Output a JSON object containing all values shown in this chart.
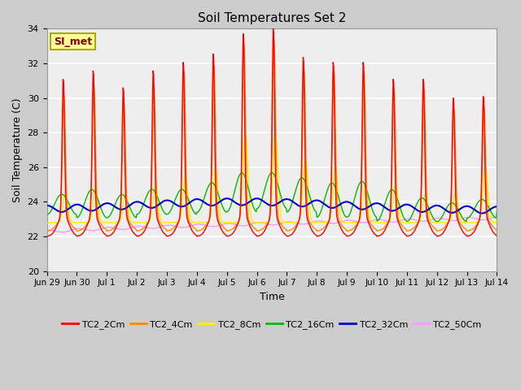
{
  "title": "Soil Temperatures Set 2",
  "xlabel": "Time",
  "ylabel": "Soil Temperature (C)",
  "ylim": [
    20,
    34
  ],
  "yticks": [
    20,
    22,
    24,
    26,
    28,
    30,
    32,
    34
  ],
  "annotation": "SI_met",
  "series_colors": {
    "TC2_2Cm": "#ff0000",
    "TC2_4Cm": "#ff8800",
    "TC2_8Cm": "#ffee00",
    "TC2_16Cm": "#00bb00",
    "TC2_32Cm": "#0000cc",
    "TC2_50Cm": "#ff99ff"
  },
  "x_tick_labels": [
    "Jun 29",
    "Jun 30",
    "Jul 1",
    "Jul 2",
    "Jul 3",
    "Jul 4",
    "Jul 5",
    "Jul 6",
    "Jul 7",
    "Jul 8",
    "Jul 9",
    "Jul 10",
    "Jul 11",
    "Jul 12",
    "Jul 13",
    "Jul 14"
  ]
}
